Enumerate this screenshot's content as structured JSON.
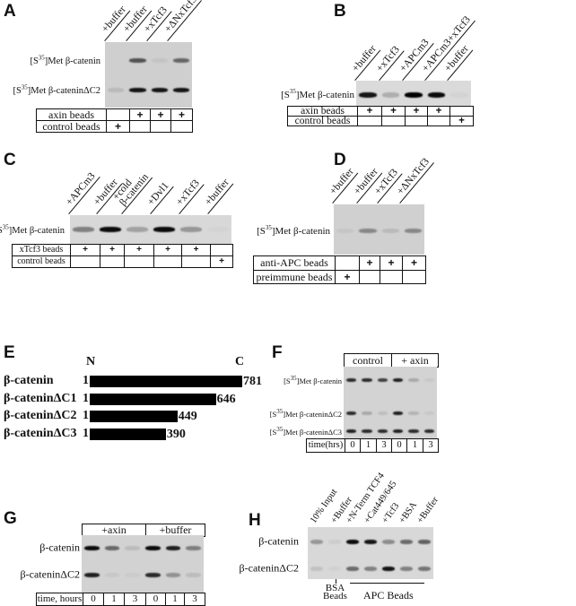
{
  "panel_a": {
    "letter": "A",
    "lanes": [
      "+buffer",
      "+buffer",
      "+xTcf3",
      "+ΔNxTcf3"
    ],
    "rows": [
      {
        "pre": "[S",
        "sup": "35",
        "post": "]Met β-catenin"
      },
      {
        "pre": "[S",
        "sup": "35",
        "post": "]Met β-cateninΔC2"
      }
    ],
    "bands": [
      [
        0.0,
        0.6,
        0.05,
        0.5
      ],
      [
        0.1,
        0.9,
        0.9,
        0.9
      ]
    ],
    "table": [
      {
        "label": "axin beads",
        "marks": [
          "",
          "+",
          "+",
          "+"
        ]
      },
      {
        "label": "control beads",
        "marks": [
          "+",
          "",
          "",
          ""
        ]
      }
    ]
  },
  "panel_b": {
    "letter": "B",
    "lanes": [
      "+buffer",
      "+xTcf3",
      "+APCm3",
      "+APCm3+xTcf3",
      "+buffer"
    ],
    "rows": [
      {
        "pre": "[S",
        "sup": "35",
        "post": "]Met β-catenin"
      }
    ],
    "bands": [
      [
        0.9,
        0.2,
        1.0,
        0.95,
        0.03
      ]
    ],
    "table": [
      {
        "label": "axin beads",
        "marks": [
          "+",
          "+",
          "+",
          "+",
          ""
        ]
      },
      {
        "label": "control beads",
        "marks": [
          "",
          "",
          "",
          "",
          "+"
        ]
      }
    ]
  },
  "panel_c": {
    "letter": "C",
    "lanes": [
      "+APCm3",
      "+buffer",
      "+cold\nβ-catenin",
      "+Dvl1",
      "+xTcf3",
      "+buffer"
    ],
    "rows": [
      {
        "pre": "[S",
        "sup": "35",
        "post": "]Met β-catenin"
      }
    ],
    "bands": [
      [
        0.4,
        0.95,
        0.25,
        0.95,
        0.3,
        0.02
      ]
    ],
    "table": [
      {
        "label": "xTcf3 beads",
        "marks": [
          "+",
          "+",
          "+",
          "+",
          "+",
          ""
        ]
      },
      {
        "label": "control beads",
        "marks": [
          "",
          "",
          "",
          "",
          "",
          "+"
        ]
      }
    ]
  },
  "panel_d": {
    "letter": "D",
    "lanes": [
      "+buffer",
      "+buffer",
      "+xTcf3",
      "+ΔNxTcf3"
    ],
    "rows": [
      {
        "pre": "[S",
        "sup": "35",
        "post": "]Met β-catenin"
      }
    ],
    "bands": [
      [
        0.05,
        0.35,
        0.1,
        0.35
      ]
    ],
    "table": [
      {
        "label": "anti-APC beads",
        "marks": [
          "",
          "+",
          "+",
          "+"
        ]
      },
      {
        "label": "preimmune beads",
        "marks": [
          "+",
          "",
          "",
          ""
        ]
      }
    ]
  },
  "panel_e": {
    "letter": "E",
    "n_label": "N",
    "c_label": "C",
    "constructs": [
      {
        "name": "β-catenin",
        "start": "1",
        "end": 781
      },
      {
        "name": "β-cateninΔC1",
        "start": "1",
        "end": 646
      },
      {
        "name": "β-cateninΔC2",
        "start": "1",
        "end": 449
      },
      {
        "name": "β-cateninΔC3",
        "start": "1",
        "end": 390
      }
    ]
  },
  "panel_f": {
    "letter": "F",
    "groups": [
      "control",
      "+ axin"
    ],
    "rows": [
      {
        "pre": "[S",
        "sup": "35",
        "post": "]Met β-catenin"
      },
      {
        "pre": "[S",
        "sup": "35",
        "post": "]Met β-cateninΔC2"
      },
      {
        "pre": "[S",
        "sup": "35",
        "post": "]Met β-cateninΔC3"
      }
    ],
    "bands": [
      [
        0.8,
        0.8,
        0.7,
        0.85,
        0.2,
        0.05
      ],
      [
        0.8,
        0.2,
        0.1,
        0.85,
        0.15,
        0.05
      ],
      [
        0.85,
        0.8,
        0.8,
        0.85,
        0.8,
        0.8
      ]
    ],
    "time_label": "time(hrs)",
    "times": [
      "0",
      "1",
      "3",
      "0",
      "1",
      "3"
    ]
  },
  "panel_g": {
    "letter": "G",
    "groups": [
      "+axin",
      "+buffer"
    ],
    "rows": [
      "β-catenin",
      "β-cateninΔC2"
    ],
    "bands": [
      [
        0.95,
        0.5,
        0.1,
        0.95,
        0.85,
        0.4
      ],
      [
        0.85,
        0.05,
        0.03,
        0.8,
        0.3,
        0.1
      ]
    ],
    "time_label": "time, hours",
    "times": [
      "0",
      "1",
      "3",
      "0",
      "1",
      "3"
    ]
  },
  "panel_h": {
    "letter": "H",
    "lanes": [
      "10% Input",
      "+Buffer",
      "+N-Term TCF4",
      "+Cat449/645",
      "+Tcf3",
      "+BSA",
      "+Buffer"
    ],
    "rows": [
      "β-catenin",
      "β-cateninΔC2"
    ],
    "bands": [
      [
        0.3,
        0.05,
        0.95,
        0.9,
        0.35,
        0.5,
        0.55
      ],
      [
        0.1,
        0.03,
        0.5,
        0.4,
        0.9,
        0.4,
        0.45
      ]
    ],
    "bsa_beads": "BSA\nBeads",
    "apc_beads": "APC Beads"
  }
}
